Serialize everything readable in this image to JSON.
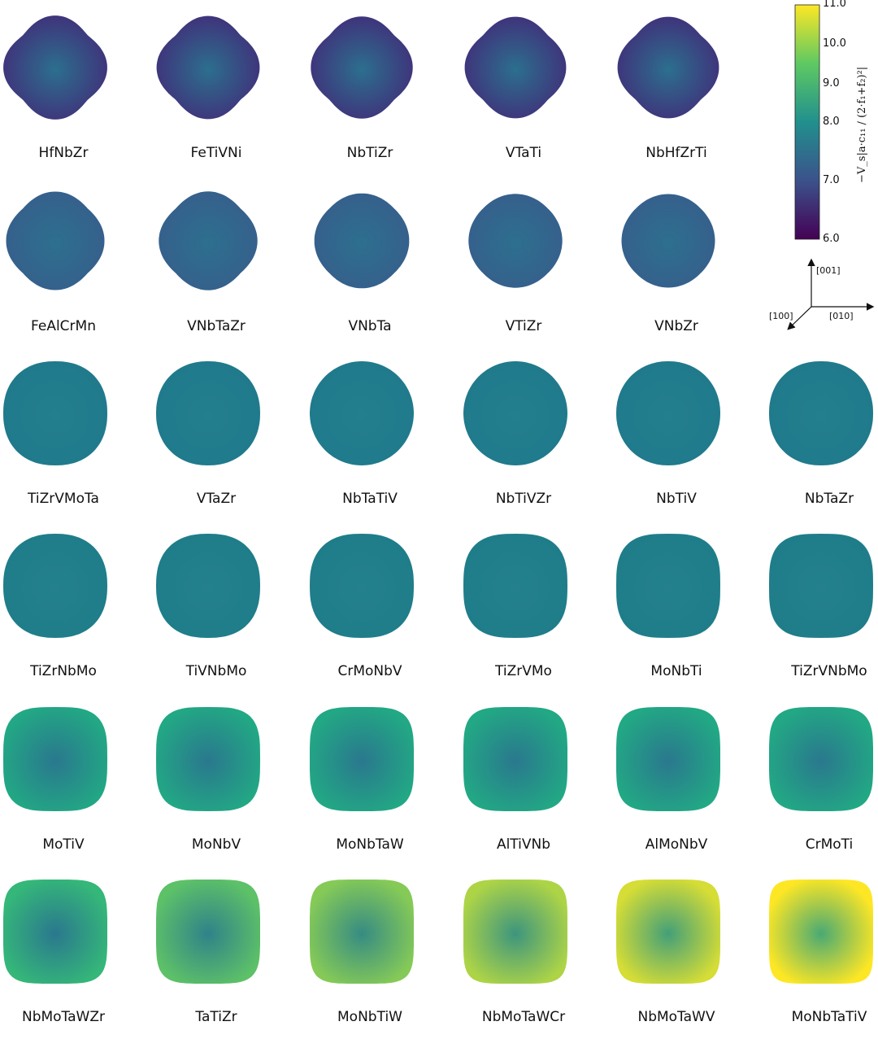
{
  "alloys": [
    {
      "name": "HfNbZr",
      "row": 0,
      "col": 0,
      "level": 0.55
    },
    {
      "name": "FeTiVNi",
      "row": 0,
      "col": 1,
      "level": 0.58
    },
    {
      "name": "NbTiZr",
      "row": 0,
      "col": 2,
      "level": 0.62
    },
    {
      "name": "VTaTi",
      "row": 0,
      "col": 3,
      "level": 0.64
    },
    {
      "name": "NbHfZrTi",
      "row": 0,
      "col": 4,
      "level": 0.64
    },
    {
      "name": "FeAlCrMn",
      "row": 1,
      "col": 0,
      "level": 0.75
    },
    {
      "name": "VNbTaZr",
      "row": 1,
      "col": 1,
      "level": 0.74
    },
    {
      "name": "VNbTa",
      "row": 1,
      "col": 2,
      "level": 0.88
    },
    {
      "name": "VTiZr",
      "row": 1,
      "col": 3,
      "level": 0.92
    },
    {
      "name": "VNbZr",
      "row": 1,
      "col": 4,
      "level": 0.93
    },
    {
      "name": "TiZrVMoTa",
      "row": 2,
      "col": 0,
      "level": 0.97
    },
    {
      "name": "VTaZr",
      "row": 2,
      "col": 1,
      "level": 0.98
    },
    {
      "name": "NbTaTiV",
      "row": 2,
      "col": 2,
      "level": 1.0
    },
    {
      "name": "NbTiVZr",
      "row": 2,
      "col": 3,
      "level": 1.0
    },
    {
      "name": "NbTiV",
      "row": 2,
      "col": 4,
      "level": 0.99
    },
    {
      "name": "NbTaZr",
      "row": 2,
      "col": 5,
      "level": 0.98
    },
    {
      "name": "TiZrNbMo",
      "row": 3,
      "col": 0,
      "level": 0.96
    },
    {
      "name": "TiVNbMo",
      "row": 3,
      "col": 1,
      "level": 0.95
    },
    {
      "name": "CrMoNbV",
      "row": 3,
      "col": 2,
      "level": 0.94
    },
    {
      "name": "TiZrVMo",
      "row": 3,
      "col": 3,
      "level": 0.9
    },
    {
      "name": "MoNbTi",
      "row": 3,
      "col": 4,
      "level": 0.88
    },
    {
      "name": "TiZrVNbMo",
      "row": 3,
      "col": 5,
      "level": 0.86
    },
    {
      "name": "MoTiV",
      "row": 4,
      "col": 0,
      "level": 0.84
    },
    {
      "name": "MoNbV",
      "row": 4,
      "col": 1,
      "level": 0.83
    },
    {
      "name": "MoNbTaW",
      "row": 4,
      "col": 2,
      "level": 0.78
    },
    {
      "name": "AlTiVNb",
      "row": 4,
      "col": 3,
      "level": 0.76
    },
    {
      "name": "AlMoNbV",
      "row": 4,
      "col": 4,
      "level": 0.76
    },
    {
      "name": "CrMoTi",
      "row": 4,
      "col": 5,
      "level": 0.76
    },
    {
      "name": "NbMoTaWZr",
      "row": 5,
      "col": 0,
      "level": 0.72
    },
    {
      "name": "TaTiZr",
      "row": 5,
      "col": 1,
      "level": 0.72
    },
    {
      "name": "MoNbTiW",
      "row": 5,
      "col": 2,
      "level": 0.68
    },
    {
      "name": "NbMoTaWCr",
      "row": 5,
      "col": 3,
      "level": 0.64
    },
    {
      "name": "NbMoTaWV",
      "row": 5,
      "col": 4,
      "level": 0.64
    },
    {
      "name": "MoNbTaTiV",
      "row": 5,
      "col": 5,
      "level": 0.55
    }
  ],
  "colorbar": {
    "ticks": [
      "11.0",
      "10.0",
      "9.0",
      "8.0",
      "7.0",
      "6.0"
    ],
    "label": "−V_s|a·c₁₁ / (2·f₁+f₂)²|",
    "range": [
      6.0,
      11.0
    ],
    "colors": [
      "#440154",
      "#3b528b",
      "#21908d",
      "#5ec962",
      "#fde725"
    ]
  },
  "axes": {
    "x": "[100]",
    "y": "[010]",
    "z": "[001]"
  },
  "row_tints": [
    "#3a4a8c",
    "#2f6b8e",
    "#1f7a8c",
    "#1f7d8a",
    "#1f8f80",
    "#2aa57a"
  ]
}
